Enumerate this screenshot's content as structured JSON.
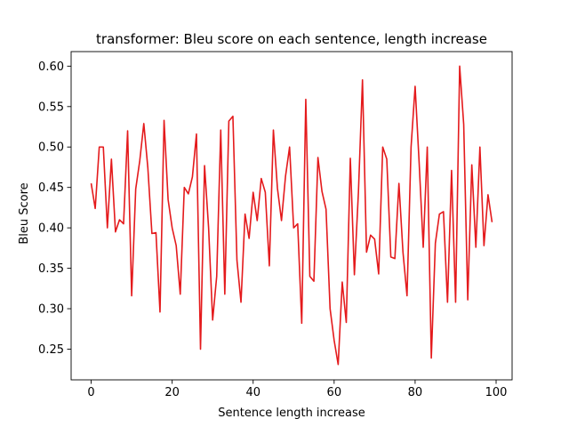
{
  "chart_data": {
    "type": "line",
    "title": "transformer: Bleu score on each sentence, length increase",
    "xlabel": "Sentence length increase",
    "ylabel": "Bleu Score",
    "xlim": [
      -4.95,
      103.95
    ],
    "ylim": [
      0.212,
      0.618
    ],
    "xticks": [
      0,
      20,
      40,
      60,
      80,
      100
    ],
    "yticks": [
      0.25,
      0.3,
      0.35,
      0.4,
      0.45,
      0.5,
      0.55,
      0.6
    ],
    "grid": false,
    "series": [
      {
        "color": "#e41a1c",
        "x": [
          0,
          1,
          2,
          3,
          4,
          5,
          6,
          7,
          8,
          9,
          10,
          11,
          12,
          13,
          14,
          15,
          16,
          17,
          18,
          19,
          20,
          21,
          22,
          23,
          24,
          25,
          26,
          27,
          28,
          29,
          30,
          31,
          32,
          33,
          34,
          35,
          36,
          37,
          38,
          39,
          40,
          41,
          42,
          43,
          44,
          45,
          46,
          47,
          48,
          49,
          50,
          51,
          52,
          53,
          54,
          55,
          56,
          57,
          58,
          59,
          60,
          61,
          62,
          63,
          64,
          65,
          66,
          67,
          68,
          69,
          70,
          71,
          72,
          73,
          74,
          75,
          76,
          77,
          78,
          79,
          80,
          81,
          82,
          83,
          84,
          85,
          86,
          87,
          88,
          89,
          90,
          91,
          92,
          93,
          94,
          95,
          96,
          97,
          98,
          99
        ],
        "y": [
          0.455,
          0.424,
          0.5,
          0.5,
          0.4,
          0.485,
          0.395,
          0.41,
          0.405,
          0.52,
          0.316,
          0.448,
          0.483,
          0.529,
          0.474,
          0.393,
          0.394,
          0.296,
          0.533,
          0.435,
          0.4,
          0.378,
          0.318,
          0.45,
          0.442,
          0.463,
          0.516,
          0.25,
          0.477,
          0.4,
          0.286,
          0.34,
          0.521,
          0.318,
          0.532,
          0.538,
          0.36,
          0.308,
          0.417,
          0.387,
          0.444,
          0.409,
          0.461,
          0.444,
          0.353,
          0.521,
          0.449,
          0.409,
          0.464,
          0.5,
          0.4,
          0.405,
          0.282,
          0.559,
          0.34,
          0.334,
          0.487,
          0.445,
          0.423,
          0.3,
          0.261,
          0.231,
          0.333,
          0.283,
          0.486,
          0.342,
          0.444,
          0.583,
          0.37,
          0.391,
          0.386,
          0.343,
          0.5,
          0.485,
          0.364,
          0.362,
          0.455,
          0.37,
          0.316,
          0.5,
          0.575,
          0.48,
          0.376,
          0.5,
          0.239,
          0.381,
          0.417,
          0.42,
          0.308,
          0.471,
          0.308,
          0.6,
          0.528,
          0.311,
          0.478,
          0.376,
          0.5,
          0.378,
          0.441,
          0.407
        ]
      }
    ]
  }
}
